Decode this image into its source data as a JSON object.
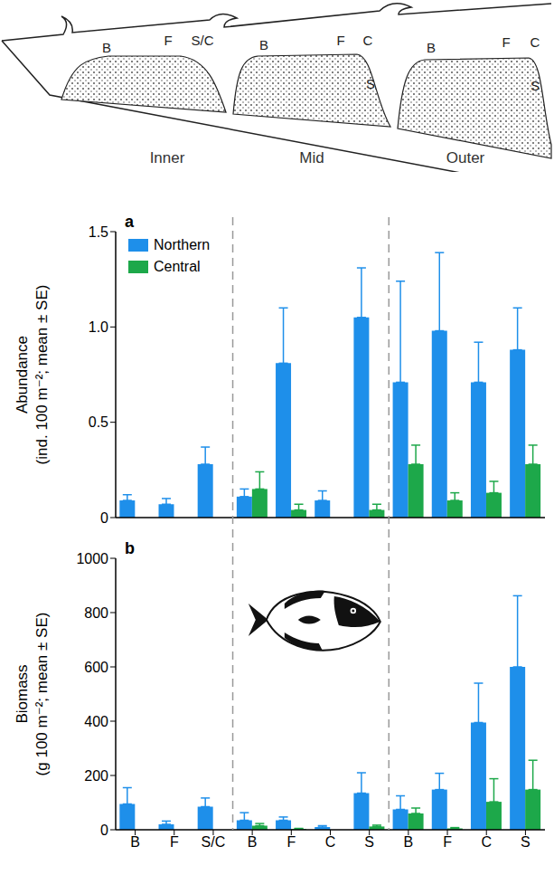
{
  "diagram": {
    "zones": [
      {
        "label": "Inner",
        "sites": [
          "B",
          "F",
          "S/C"
        ]
      },
      {
        "label": "Mid",
        "sites": [
          "B",
          "F",
          "C",
          "S"
        ]
      },
      {
        "label": "Outer",
        "sites": [
          "B",
          "F",
          "C",
          "S"
        ]
      }
    ]
  },
  "chart_data": [
    {
      "type": "bar",
      "panel": "a",
      "ylabel": "Abundance (ind. 100 m⁻²; mean ± SE)",
      "categories": [
        "B",
        "F",
        "S/C",
        "B",
        "F",
        "C",
        "S",
        "B",
        "F",
        "C",
        "S"
      ],
      "series": [
        {
          "name": "Northern",
          "color": "#1E8FEA",
          "values": [
            0.09,
            0.07,
            0.28,
            0.11,
            0.81,
            0.09,
            1.05,
            0.71,
            0.98,
            0.71,
            0.88
          ],
          "errors": [
            0.03,
            0.03,
            0.09,
            0.04,
            0.29,
            0.05,
            0.26,
            0.53,
            0.41,
            0.21,
            0.22
          ]
        },
        {
          "name": "Central",
          "color": "#1DA84A",
          "values": [
            null,
            null,
            null,
            0.15,
            0.04,
            null,
            0.04,
            0.28,
            0.09,
            0.13,
            0.28
          ],
          "errors": [
            null,
            null,
            null,
            0.09,
            0.03,
            null,
            0.03,
            0.1,
            0.04,
            0.06,
            0.1
          ]
        }
      ],
      "ylim": [
        0,
        1.5
      ],
      "yticks": [
        0,
        0.5,
        {
          "value": 1,
          "label": "1.0"
        },
        1.5
      ],
      "legend": "upper left",
      "tick_labels": "y"
    },
    {
      "type": "bar",
      "panel": "b",
      "ylabel": "Biomass (g 100 m⁻²; mean ± SE)",
      "categories": [
        "B",
        "F",
        "S/C",
        "B",
        "F",
        "C",
        "S",
        "B",
        "F",
        "C",
        "S"
      ],
      "series": [
        {
          "name": "Northern",
          "color": "#1E8FEA",
          "values": [
            95,
            20,
            85,
            35,
            35,
            10,
            135,
            75,
            148,
            395,
            600
          ],
          "errors": [
            60,
            12,
            32,
            28,
            12,
            5,
            75,
            50,
            60,
            145,
            262
          ]
        },
        {
          "name": "Central",
          "color": "#1DA84A",
          "values": [
            null,
            null,
            null,
            15,
            3,
            null,
            12,
            60,
            5,
            103,
            148
          ],
          "errors": [
            null,
            null,
            null,
            8,
            2,
            null,
            5,
            20,
            3,
            85,
            108
          ]
        }
      ],
      "ylim": [
        0,
        1000
      ],
      "yticks": [
        0,
        200,
        400,
        600,
        800,
        1000
      ]
    }
  ]
}
